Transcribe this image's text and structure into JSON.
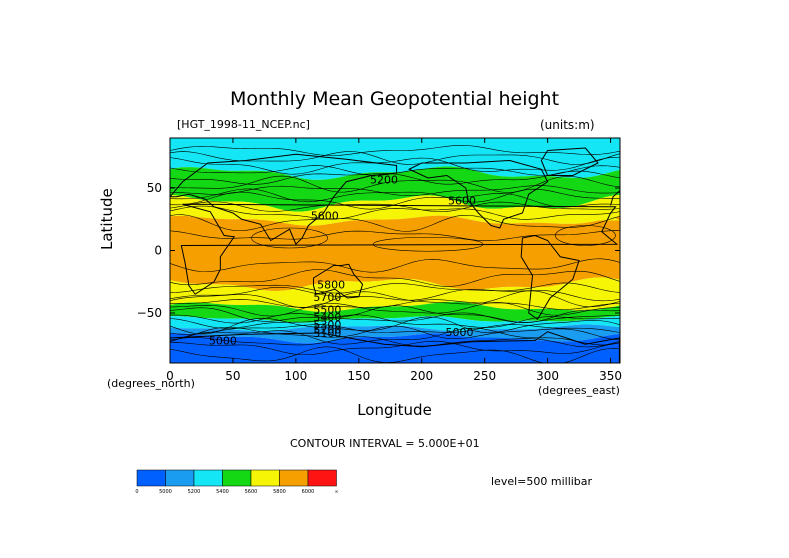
{
  "chart_data": {
    "type": "heatmap",
    "title": "Monthly Mean Geopotential height",
    "source_label": "[HGT_1998-11_NCEP.nc]",
    "units_label": "(units:m)",
    "xlabel": "Longitude",
    "ylabel": "Latitude",
    "x_units_label": "(degrees_east)",
    "y_units_label": "(degrees_north)",
    "xlim": [
      0,
      357.5
    ],
    "ylim": [
      -90,
      90
    ],
    "x_ticks": [
      0,
      50,
      100,
      150,
      200,
      250,
      300,
      350
    ],
    "x_tick_labels": [
      "0",
      "50",
      "100",
      "150",
      "200",
      "250",
      "300",
      "350"
    ],
    "y_ticks": [
      50,
      0,
      -50
    ],
    "y_tick_labels": [
      "50",
      "0",
      "−50"
    ],
    "contour_interval_label": "CONTOUR INTERVAL = 5.000E+01",
    "level_label": "level=500 millibar",
    "colorbar": {
      "colors": [
        "#0060ff",
        "#1a9cf0",
        "#14e6f5",
        "#14d814",
        "#f5f505",
        "#f5a000",
        "#ff1414"
      ],
      "labels": [
        "0",
        "5000",
        "5200",
        "5400",
        "5600",
        "5800",
        "6000",
        "∞"
      ]
    },
    "contour_labels": [
      {
        "text": "5200",
        "lon": 170,
        "lat": 57
      },
      {
        "text": "5600",
        "lon": 232,
        "lat": 40
      },
      {
        "text": "5600",
        "lon": 123,
        "lat": 28
      },
      {
        "text": "5800",
        "lon": 128,
        "lat": -27
      },
      {
        "text": "5700",
        "lon": 125,
        "lat": -37
      },
      {
        "text": "5500",
        "lon": 125,
        "lat": -47
      },
      {
        "text": "5400",
        "lon": 125,
        "lat": -53
      },
      {
        "text": "5300",
        "lon": 125,
        "lat": -59
      },
      {
        "text": "5200",
        "lon": 125,
        "lat": -63
      },
      {
        "text": "5100",
        "lon": 125,
        "lat": -66
      },
      {
        "text": "5000",
        "lon": 42,
        "lat": -72
      },
      {
        "text": "5000",
        "lon": 230,
        "lat": -65
      }
    ],
    "bands": [
      {
        "color": "#14e6f5",
        "value_range": [
          5200,
          5400
        ],
        "region": "north polar"
      },
      {
        "color": "#14d814",
        "value_range": [
          5400,
          5600
        ],
        "region": "north mid-latitudes"
      },
      {
        "color": "#f5f505",
        "value_range": [
          5600,
          5800
        ],
        "region": "north subtropics"
      },
      {
        "color": "#f5a000",
        "value_range": [
          5800,
          6000
        ],
        "region": "tropics"
      },
      {
        "color": "#f5f505",
        "value_range": [
          5600,
          5800
        ],
        "region": "south subtropics"
      },
      {
        "color": "#14d814",
        "value_range": [
          5400,
          5600
        ],
        "region": "south mid-latitudes"
      },
      {
        "color": "#14e6f5",
        "value_range": [
          5200,
          5400
        ],
        "region": "south high-latitudes"
      },
      {
        "color": "#1a9cf0",
        "value_range": [
          5000,
          5200
        ],
        "region": "southern ocean"
      },
      {
        "color": "#0060ff",
        "value_range": [
          0,
          5000
        ],
        "region": "antarctic lows"
      }
    ]
  }
}
